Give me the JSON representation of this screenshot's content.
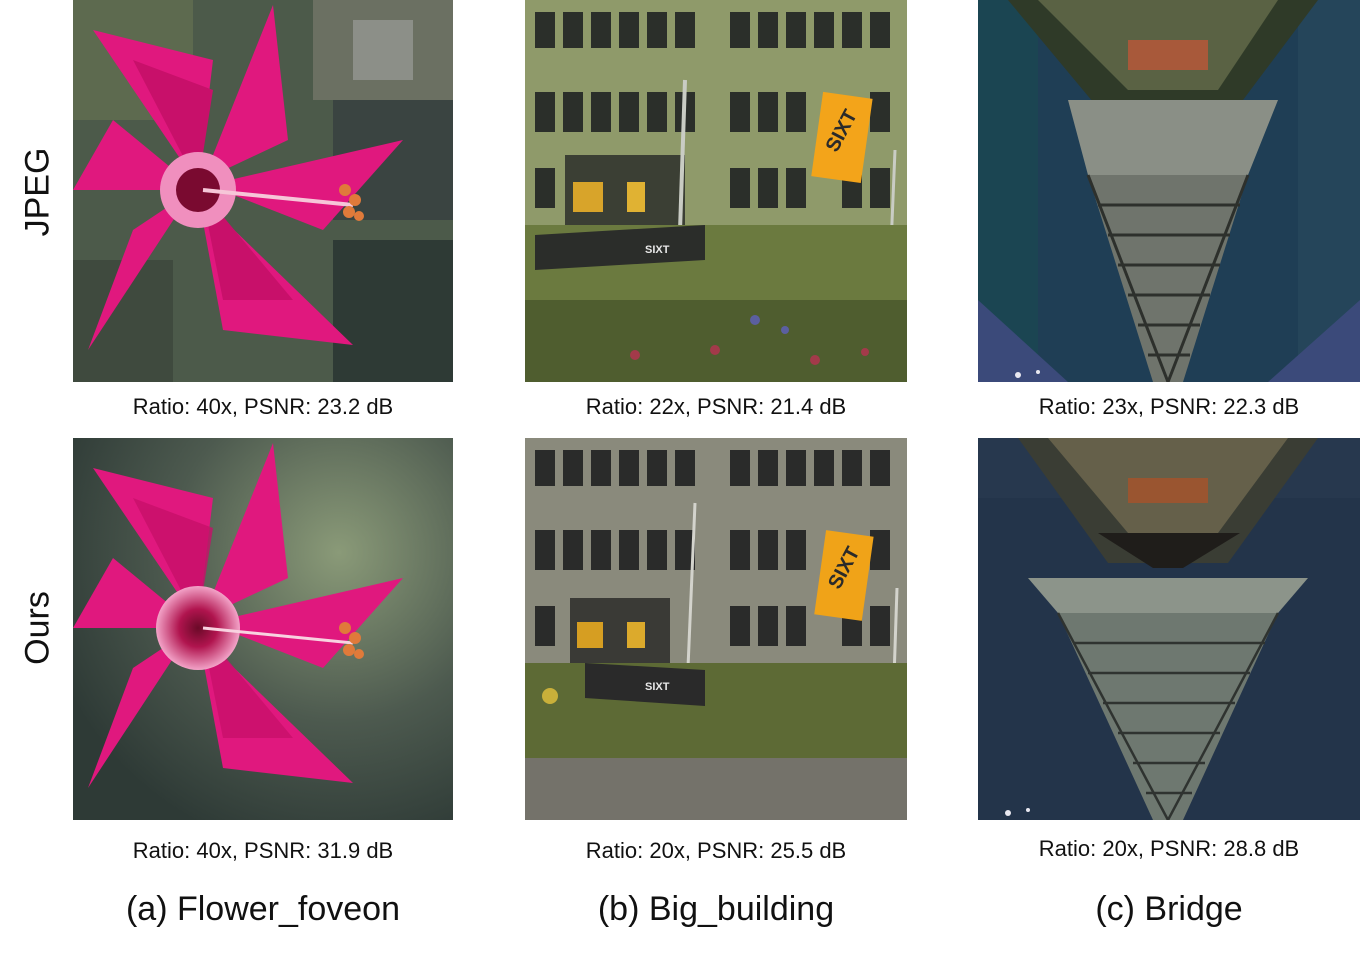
{
  "rows": [
    {
      "label": "JPEG"
    },
    {
      "label": "Ours"
    }
  ],
  "columns": [
    {
      "title": "(a) Flower_foveon",
      "jpeg_caption": "Ratio: 40x, PSNR: 23.2 dB",
      "ours_caption": "Ratio: 40x, PSNR: 31.9 dB"
    },
    {
      "title": "(b) Big_building",
      "jpeg_caption": "Ratio: 22x, PSNR: 21.4 dB",
      "ours_caption": "Ratio: 20x, PSNR: 25.5 dB",
      "flag_text": "SIXT",
      "sign_text": "SIXT"
    },
    {
      "title": "(c) Bridge",
      "jpeg_caption": "Ratio: 23x, PSNR: 22.3 dB",
      "ours_caption": "Ratio: 20x, PSNR: 28.8 dB"
    }
  ],
  "colors": {
    "petal": "#e0187e",
    "flower_center": "#7a0a30",
    "flag": "#f3a41a",
    "sky_jpeg": "#1f3e55",
    "sky_ours": "#23344a"
  }
}
